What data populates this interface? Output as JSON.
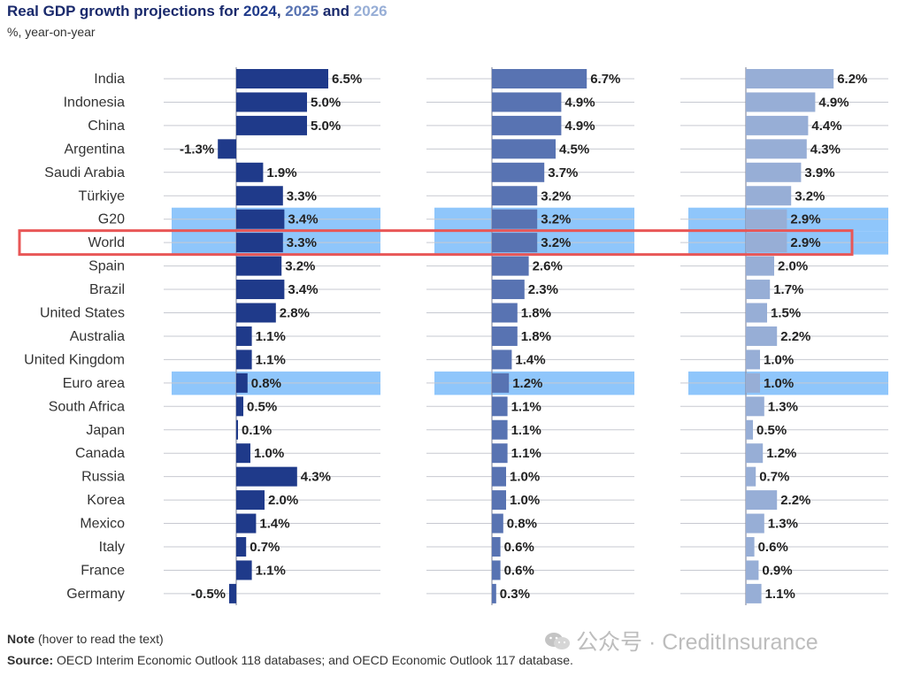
{
  "header": {
    "title_prefix": "Real GDP growth projections for ",
    "title_y1": "2024",
    "title_sep": ", ",
    "title_y2": "2025",
    "title_and": " and ",
    "title_y3": "2026",
    "subtitle": "%, year-on-year"
  },
  "footer": {
    "note_label": "Note",
    "note_text": " (hover to read the text)",
    "source_label": "Source:",
    "source_text": " OECD Interim Economic Outlook 118 databases; and OECD Economic Outlook 117 database."
  },
  "watermark": {
    "text": "公众号 · CreditInsurance"
  },
  "colors": {
    "y2024": "#1f3a8a",
    "y2025": "#5873b2",
    "y2026": "#97aed6",
    "highlight": "#8fc6fb",
    "outline": "#e85656",
    "title": "#1a2a6c"
  },
  "chart_data": {
    "type": "bar",
    "orientation": "horizontal",
    "categories": [
      "India",
      "Indonesia",
      "China",
      "Argentina",
      "Saudi Arabia",
      "Türkiye",
      "G20",
      "World",
      "Spain",
      "Brazil",
      "United States",
      "Australia",
      "United Kingdom",
      "Euro area",
      "South Africa",
      "Japan",
      "Canada",
      "Russia",
      "Korea",
      "Mexico",
      "Italy",
      "France",
      "Germany"
    ],
    "series": [
      {
        "name": "2024",
        "values": [
          6.5,
          5.0,
          5.0,
          -1.3,
          1.9,
          3.3,
          3.4,
          3.3,
          3.2,
          3.4,
          2.8,
          1.1,
          1.1,
          0.8,
          0.5,
          0.1,
          1.0,
          4.3,
          2.0,
          1.4,
          0.7,
          1.1,
          -0.5
        ],
        "labels": [
          "6.5%",
          "5.0%",
          "5.0%",
          "-1.3%",
          "1.9%",
          "3.3%",
          "3.4%",
          "3.3%",
          "3.2%",
          "3.4%",
          "2.8%",
          "1.1%",
          "1.1%",
          "0.8%",
          "0.5%",
          "0.1%",
          "1.0%",
          "4.3%",
          "2.0%",
          "1.4%",
          "0.7%",
          "1.1%",
          "-0.5%"
        ]
      },
      {
        "name": "2025",
        "values": [
          6.7,
          4.9,
          4.9,
          4.5,
          3.7,
          3.2,
          3.2,
          3.2,
          2.6,
          2.3,
          1.8,
          1.8,
          1.4,
          1.2,
          1.1,
          1.1,
          1.1,
          1.0,
          1.0,
          0.8,
          0.6,
          0.6,
          0.3
        ],
        "labels": [
          "6.7%",
          "4.9%",
          "4.9%",
          "4.5%",
          "3.7%",
          "3.2%",
          "3.2%",
          "3.2%",
          "2.6%",
          "2.3%",
          "1.8%",
          "1.8%",
          "1.4%",
          "1.2%",
          "1.1%",
          "1.1%",
          "1.1%",
          "1.0%",
          "1.0%",
          "0.8%",
          "0.6%",
          "0.6%",
          "0.3%"
        ]
      },
      {
        "name": "2026",
        "values": [
          6.2,
          4.9,
          4.4,
          4.3,
          3.9,
          3.2,
          2.9,
          2.9,
          2.0,
          1.7,
          1.5,
          2.2,
          1.0,
          1.0,
          1.3,
          0.5,
          1.2,
          0.7,
          2.2,
          1.3,
          0.6,
          0.9,
          1.1
        ],
        "labels": [
          "6.2%",
          "4.9%",
          "4.4%",
          "4.3%",
          "3.9%",
          "3.2%",
          "2.9%",
          "2.9%",
          "2.0%",
          "1.7%",
          "1.5%",
          "2.2%",
          "1.0%",
          "1.0%",
          "1.3%",
          "0.5%",
          "1.2%",
          "0.7%",
          "2.2%",
          "1.3%",
          "0.6%",
          "0.9%",
          "1.1%"
        ]
      }
    ],
    "highlighted_categories": [
      "G20",
      "World",
      "Euro area"
    ],
    "outlined_category": "World",
    "legend": "none (years colored in title)",
    "grid": true
  }
}
